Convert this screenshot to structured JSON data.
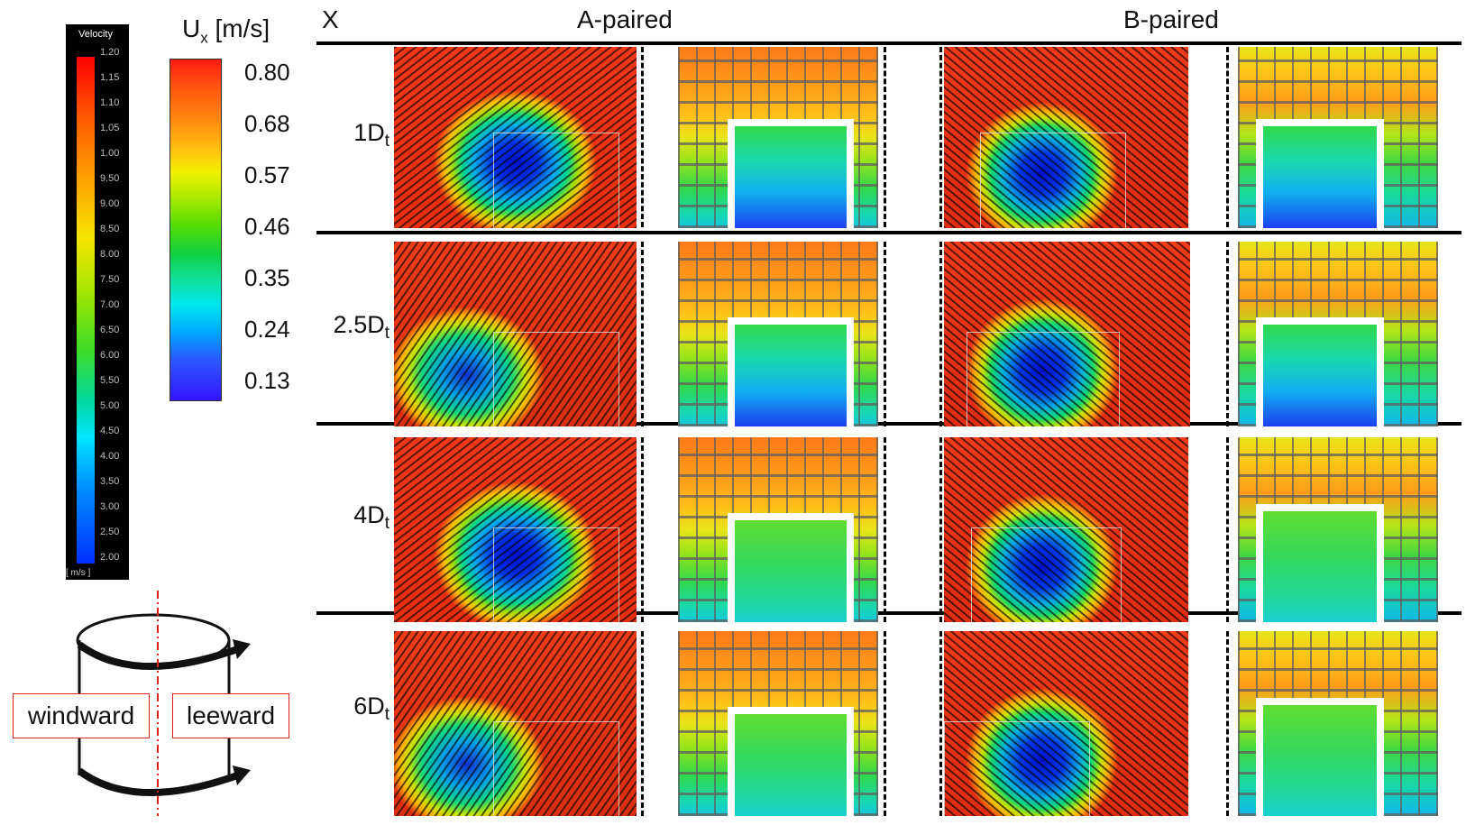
{
  "velocity_legend": {
    "title": "Velocity",
    "ticks": [
      "1.20",
      "1.15",
      "1.10",
      "1.05",
      "1.00",
      "9.50",
      "9.00",
      "8.50",
      "8.00",
      "7.50",
      "7.00",
      "6.50",
      "6.00",
      "5.50",
      "5.00",
      "4.50",
      "4.00",
      "3.50",
      "3.00",
      "2.50",
      "2.00"
    ],
    "unit": "[ m/s ]"
  },
  "ux_scale": {
    "symbol": "U",
    "subscript": "x",
    "unit": "[m/s]",
    "ticks": [
      "0.80",
      "0.68",
      "0.57",
      "0.46",
      "0.35",
      "0.24",
      "0.13"
    ]
  },
  "cylinder": {
    "windward": "windward",
    "leeward": "leeward"
  },
  "header": {
    "axis_label": "X",
    "columns": [
      "A-paired",
      "B-paired"
    ]
  },
  "rows": [
    {
      "prefix": "1D",
      "sub": "t"
    },
    {
      "prefix": "2.5D",
      "sub": "t"
    },
    {
      "prefix": "4D",
      "sub": "t"
    },
    {
      "prefix": "6D",
      "sub": "t"
    }
  ]
}
